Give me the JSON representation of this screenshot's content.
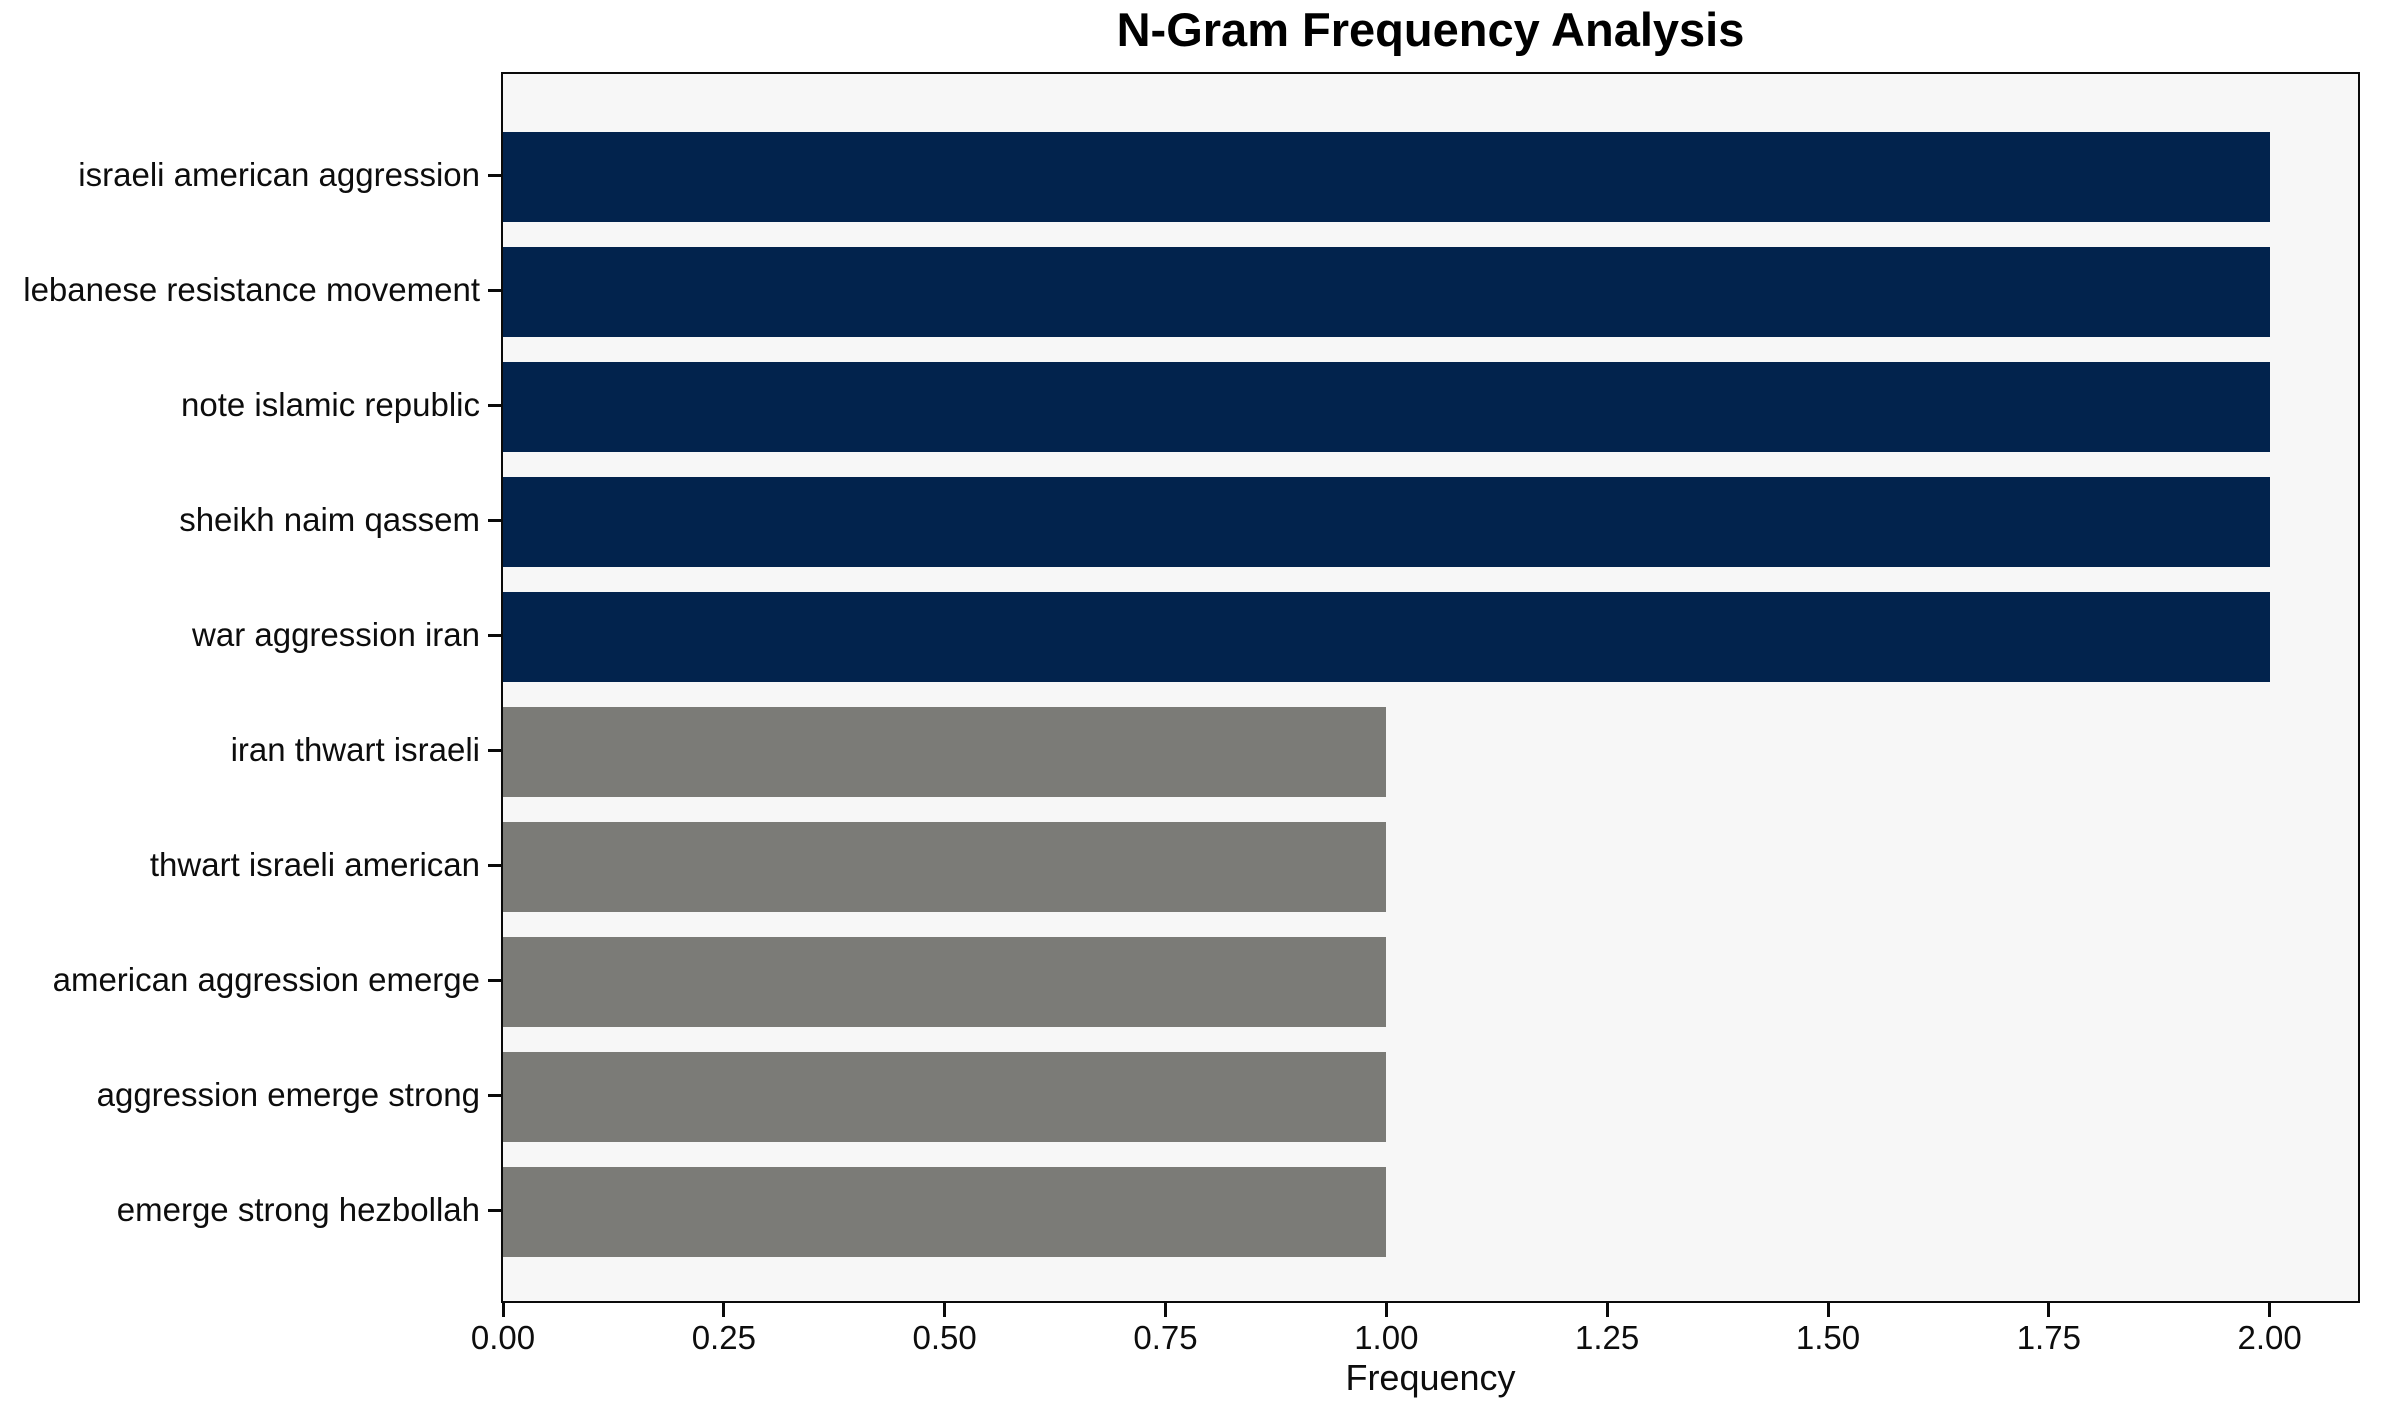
{
  "chart_data": {
    "type": "bar",
    "orientation": "horizontal",
    "title": "N-Gram Frequency Analysis",
    "xlabel": "Frequency",
    "ylabel": "",
    "categories": [
      "israeli american aggression",
      "lebanese resistance movement",
      "note islamic republic",
      "sheikh naim qassem",
      "war aggression iran",
      "iran thwart israeli",
      "thwart israeli american",
      "american aggression emerge",
      "aggression emerge strong",
      "emerge strong hezbollah"
    ],
    "values": [
      2,
      2,
      2,
      2,
      2,
      1,
      1,
      1,
      1,
      1
    ],
    "bar_colors": [
      "#02234d",
      "#02234d",
      "#02234d",
      "#02234d",
      "#02234d",
      "#7b7b77",
      "#7b7b77",
      "#7b7b77",
      "#7b7b77",
      "#7b7b77"
    ],
    "xlim": [
      0,
      2.1
    ],
    "xticks": [
      {
        "v": 0.0,
        "label": "0.00"
      },
      {
        "v": 0.25,
        "label": "0.25"
      },
      {
        "v": 0.5,
        "label": "0.50"
      },
      {
        "v": 0.75,
        "label": "0.75"
      },
      {
        "v": 1.0,
        "label": "1.00"
      },
      {
        "v": 1.25,
        "label": "1.25"
      },
      {
        "v": 1.5,
        "label": "1.50"
      },
      {
        "v": 1.75,
        "label": "1.75"
      },
      {
        "v": 2.0,
        "label": "2.00"
      }
    ],
    "grid": false,
    "legend": null,
    "plot_background": "#f7f7f7",
    "figure_background": "#ffffff",
    "spine_color": "#0a0a0a",
    "color_meaning": "navy = frequency 2, gray = frequency 1"
  }
}
